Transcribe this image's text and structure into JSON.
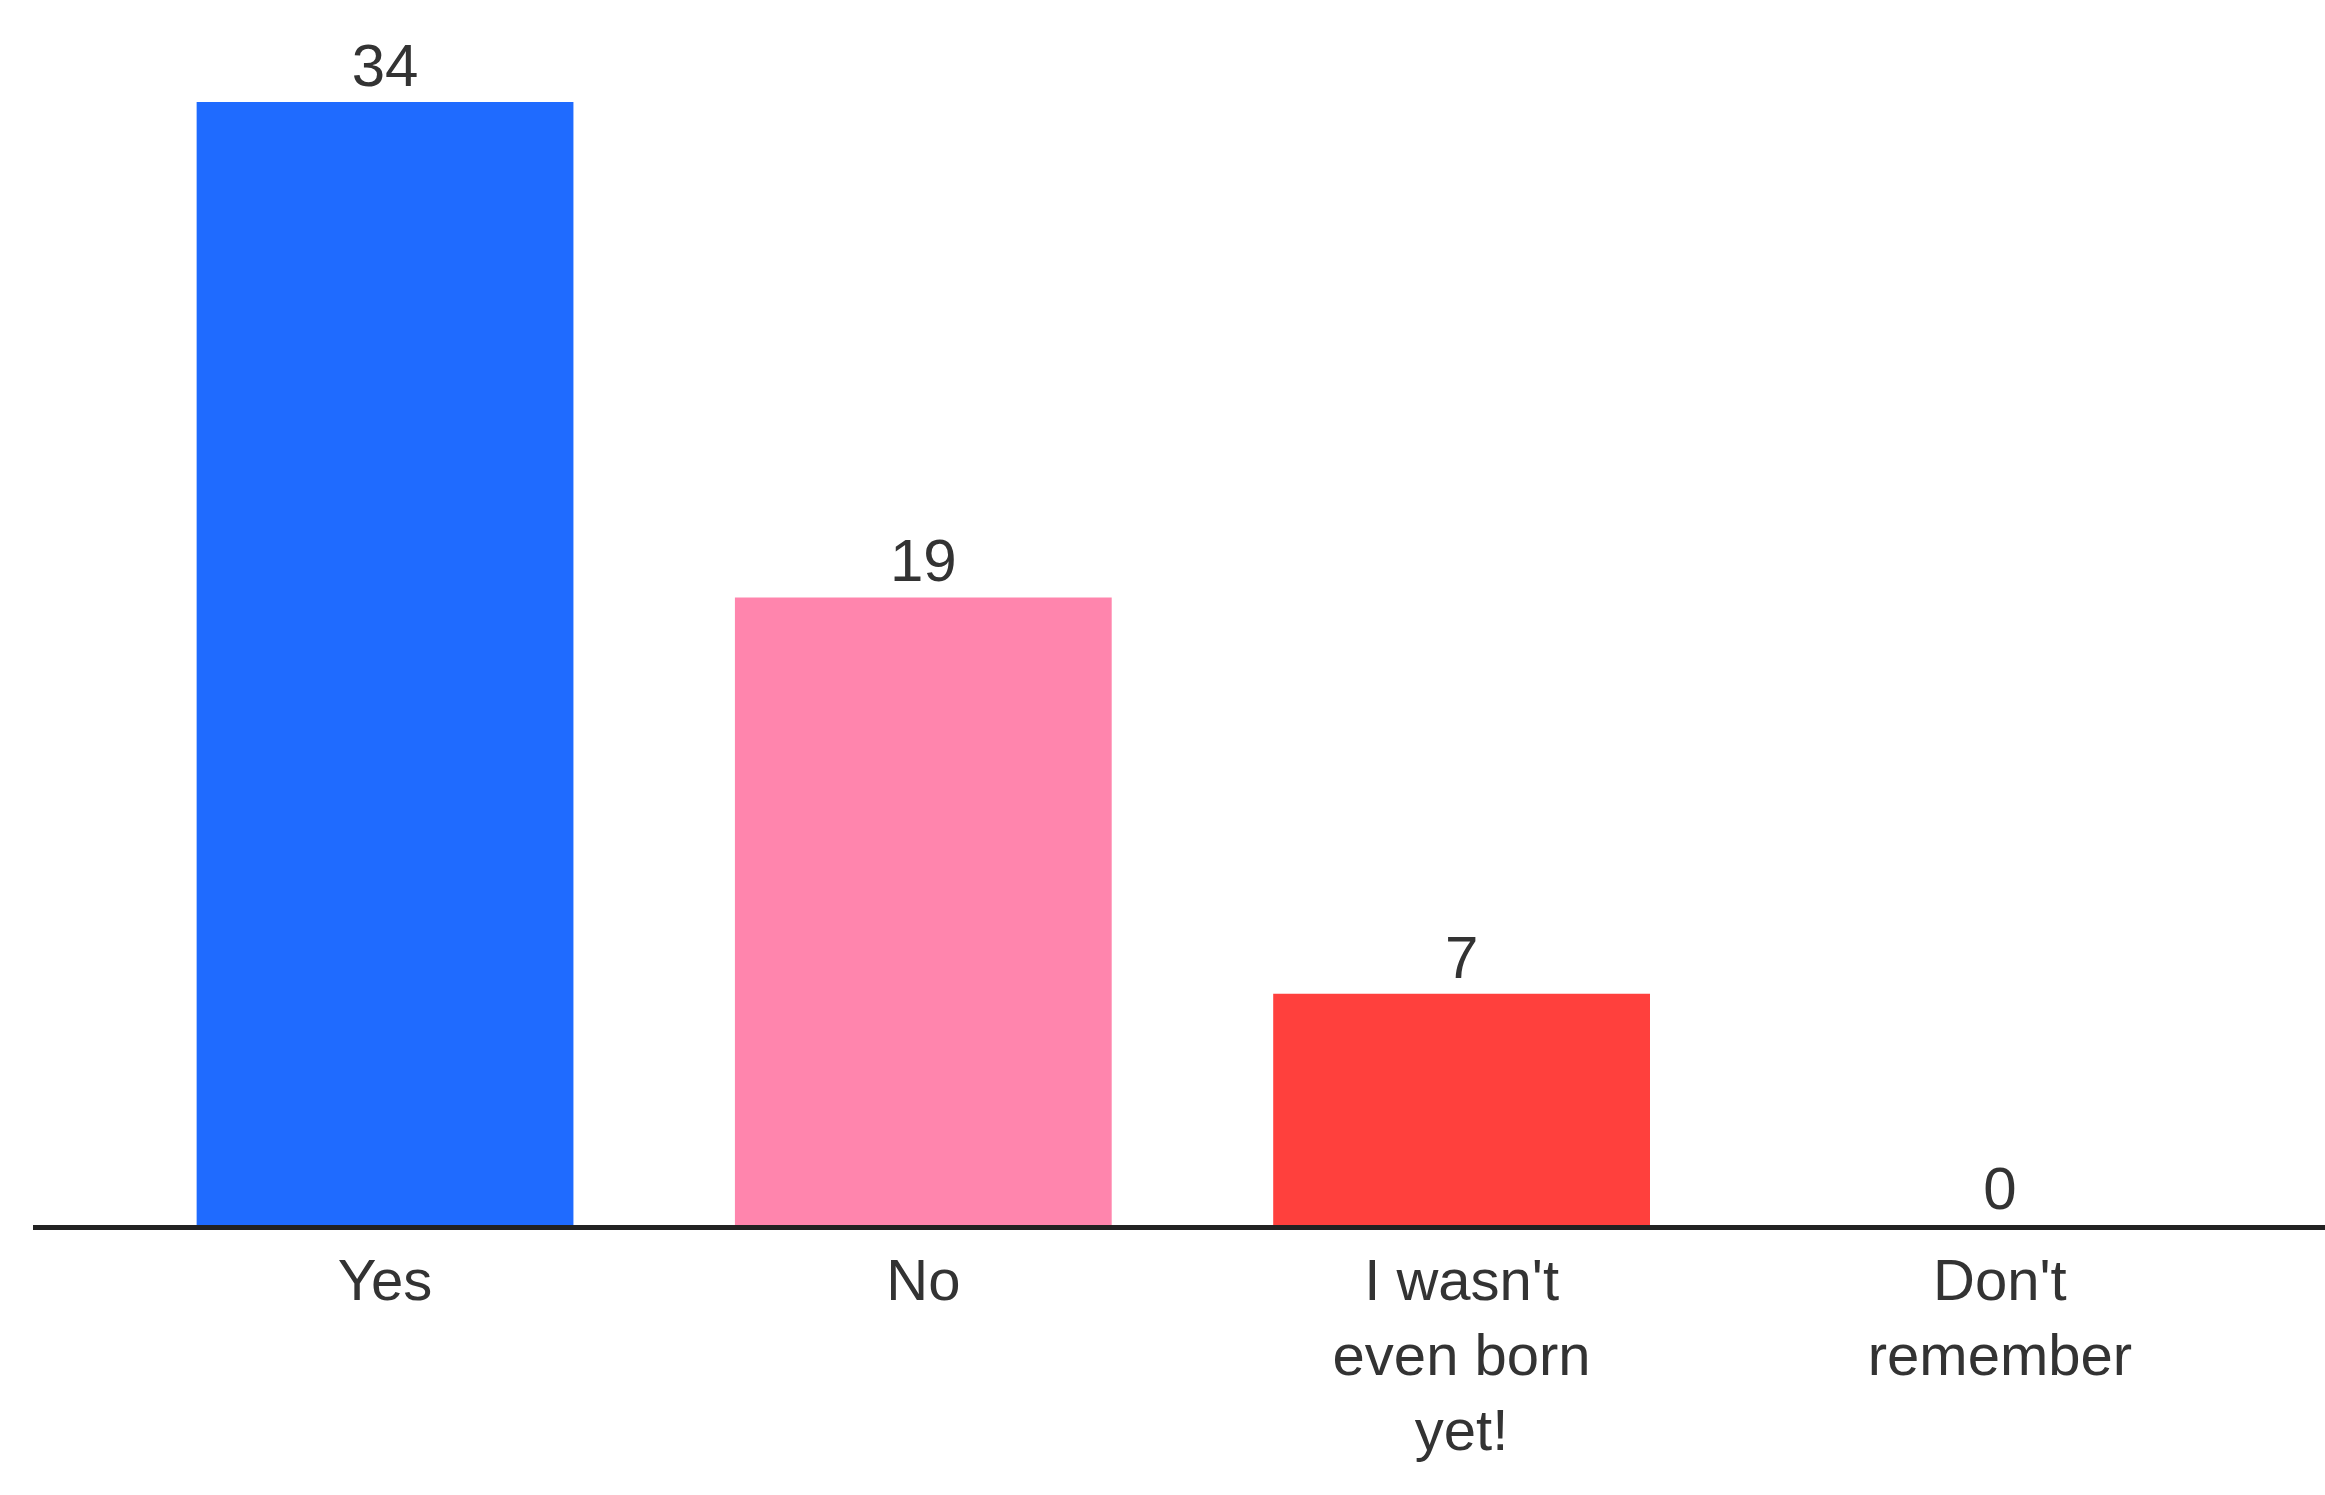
{
  "chart_data": {
    "type": "bar",
    "categories": [
      "Yes",
      "No",
      "I wasn't even born yet!",
      "Don't remember"
    ],
    "values": [
      34,
      19,
      7,
      0
    ],
    "colors": [
      "#1f6bff",
      "#ff85ad",
      "#ff403d",
      "#1f6bff"
    ],
    "data_labels": true
  }
}
